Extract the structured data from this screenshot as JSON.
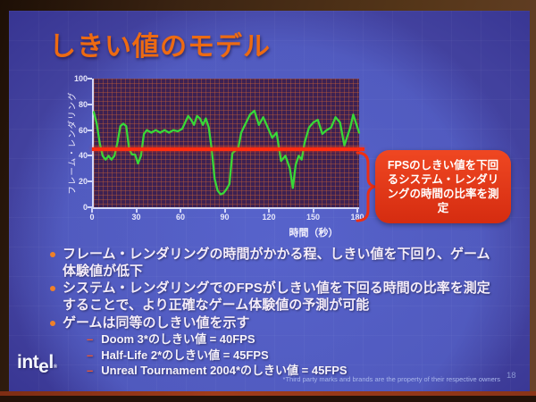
{
  "slide": {
    "title": "しきい値のモデル",
    "callout_text": "FPSのしきい値を下回るシステム・レンダリングの時間の比率を測定",
    "bullets": [
      {
        "text": "フレーム・レンダリングの時間がかかる程、しきい値を下回り、ゲーム体験値が低下"
      },
      {
        "text": "システム・レンダリングでのFPSがしきい値を下回る時間の比率を測定することで、より正確なゲーム体験値の予測が可能"
      },
      {
        "text": "ゲームは同等のしきい値を示す"
      }
    ],
    "sub_bullet_dash": "–",
    "sub_bullets": [
      {
        "text": "Doom 3*のしきい値 = 40FPS"
      },
      {
        "text": "Half-Life 2*のしきい値 = 45FPS"
      },
      {
        "text": "Unreal Tournament 2004*のしきい値 = 45FPS"
      }
    ],
    "logo": {
      "pre": "int",
      "dropped": "e",
      "post": "l",
      "reg": "®"
    },
    "footnote": "*Third party marks and brands are the property of their respective owners",
    "page_number": "18"
  },
  "chart_data": {
    "type": "line",
    "title": "",
    "xlabel": "時間（秒）",
    "ylabel": "フレーム・レンダリング",
    "xlim": [
      0,
      180
    ],
    "ylim": [
      0,
      100
    ],
    "xticks": [
      0,
      30,
      60,
      90,
      120,
      150,
      180
    ],
    "yticks": [
      0,
      20,
      40,
      60,
      80,
      100
    ],
    "grid": true,
    "legend": "none",
    "threshold": 45,
    "threshold_color": "#ff2c10",
    "series": [
      {
        "name": "フレーム・レンダリング (FPS)",
        "color": "#38d838",
        "x": [
          0,
          2,
          4,
          6,
          8,
          10,
          12,
          14,
          16,
          18,
          20,
          22,
          24,
          26,
          28,
          30,
          32,
          34,
          36,
          39,
          42,
          45,
          48,
          51,
          54,
          57,
          60,
          62,
          64,
          66,
          68,
          70,
          72,
          74,
          76,
          78,
          80,
          82,
          84,
          86,
          88,
          90,
          92,
          94,
          96,
          98,
          100,
          103,
          106,
          109,
          112,
          115,
          118,
          121,
          124,
          127,
          130,
          133,
          135,
          137,
          139,
          141,
          143,
          146,
          149,
          152,
          155,
          158,
          161,
          164,
          167,
          170,
          172,
          174,
          176,
          178,
          180
        ],
        "y": [
          74,
          65,
          50,
          40,
          37,
          40,
          37,
          40,
          50,
          63,
          65,
          63,
          45,
          41,
          41,
          34,
          40,
          57,
          60,
          58,
          60,
          58,
          60,
          58,
          60,
          59,
          61,
          66,
          71,
          68,
          64,
          71,
          69,
          64,
          69,
          62,
          45,
          22,
          13,
          10,
          11,
          14,
          18,
          42,
          44,
          46,
          58,
          65,
          72,
          75,
          64,
          70,
          62,
          54,
          58,
          36,
          40,
          30,
          15,
          33,
          40,
          37,
          50,
          62,
          66,
          68,
          57,
          60,
          62,
          70,
          66,
          48,
          55,
          62,
          72,
          65,
          58
        ]
      }
    ]
  },
  "colors": {
    "title_orange": "#ed6a12",
    "bullet_dot_orange": "#f08028",
    "series_green": "#38d838",
    "threshold_red": "#ff2c10",
    "callout_red": "#e03518",
    "slide_blue": "#42419e",
    "plot_background": "#3d2152"
  }
}
